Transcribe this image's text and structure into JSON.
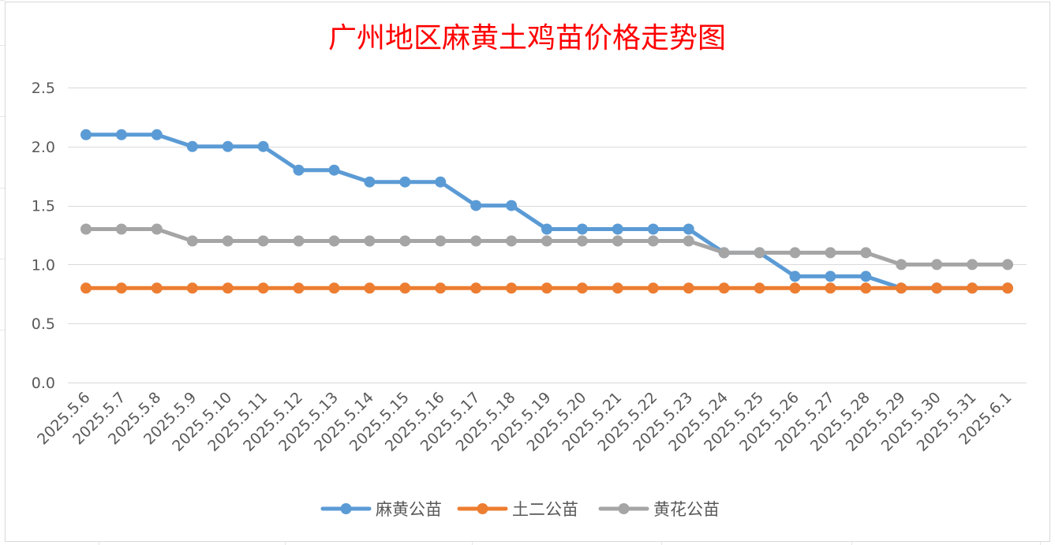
{
  "chart_data": {
    "type": "line",
    "title": "广州地区麻黄土鸡苗价格走势图",
    "title_color": "#ff0000",
    "xlabel": "",
    "ylabel": "",
    "ylim": [
      0,
      2.5
    ],
    "y_ticks": [
      "0.0",
      "0.5",
      "1.0",
      "1.5",
      "2.0",
      "2.5"
    ],
    "y_tick_values": [
      0,
      0.5,
      1.0,
      1.5,
      2.0,
      2.5
    ],
    "grid": true,
    "legend_position": "bottom",
    "categories": [
      "2025.5.6",
      "2025.5.7",
      "2025.5.8",
      "2025.5.9",
      "2025.5.10",
      "2025.5.11",
      "2025.5.12",
      "2025.5.13",
      "2025.5.14",
      "2025.5.15",
      "2025.5.16",
      "2025.5.17",
      "2025.5.18",
      "2025.5.19",
      "2025.5.20",
      "2025.5.21",
      "2025.5.22",
      "2025.5.23",
      "2025.5.24",
      "2025.5.25",
      "2025.5.26",
      "2025.5.27",
      "2025.5.28",
      "2025.5.29",
      "2025.5.30",
      "2025.5.31",
      "2025.6.1"
    ],
    "series": [
      {
        "name": "麻黄公苗",
        "color": "#5b9bd5",
        "values": [
          2.1,
          2.1,
          2.1,
          2.0,
          2.0,
          2.0,
          1.8,
          1.8,
          1.7,
          1.7,
          1.7,
          1.5,
          1.5,
          1.3,
          1.3,
          1.3,
          1.3,
          1.3,
          1.1,
          1.1,
          0.9,
          0.9,
          0.9,
          0.8,
          0.8,
          0.8,
          0.8
        ]
      },
      {
        "name": "土二公苗",
        "color": "#ed7d31",
        "values": [
          0.8,
          0.8,
          0.8,
          0.8,
          0.8,
          0.8,
          0.8,
          0.8,
          0.8,
          0.8,
          0.8,
          0.8,
          0.8,
          0.8,
          0.8,
          0.8,
          0.8,
          0.8,
          0.8,
          0.8,
          0.8,
          0.8,
          0.8,
          0.8,
          0.8,
          0.8,
          0.8
        ]
      },
      {
        "name": "黄花公苗",
        "color": "#a5a5a5",
        "values": [
          1.3,
          1.3,
          1.3,
          1.2,
          1.2,
          1.2,
          1.2,
          1.2,
          1.2,
          1.2,
          1.2,
          1.2,
          1.2,
          1.2,
          1.2,
          1.2,
          1.2,
          1.2,
          1.1,
          1.1,
          1.1,
          1.1,
          1.1,
          1.0,
          1.0,
          1.0,
          1.0
        ]
      }
    ]
  }
}
